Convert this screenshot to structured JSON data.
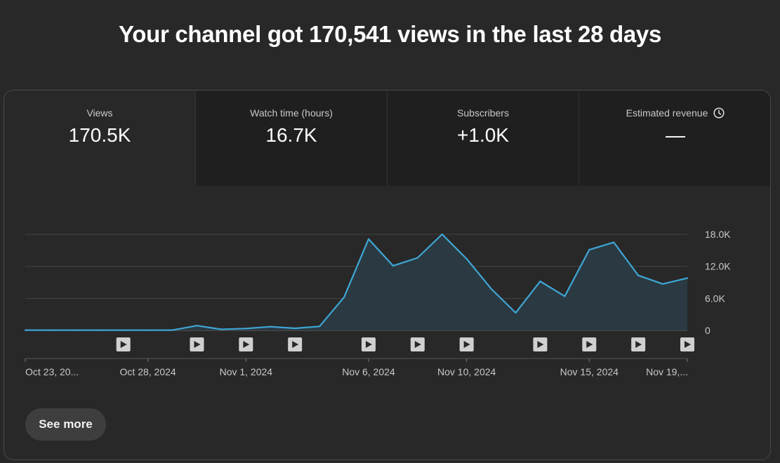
{
  "headline": "Your channel got 170,541 views in the last 28 days",
  "tabs": [
    {
      "label": "Views",
      "value": "170.5K",
      "active": true
    },
    {
      "label": "Watch time (hours)",
      "value": "16.7K",
      "active": false
    },
    {
      "label": "Subscribers",
      "value": "+1.0K",
      "active": false
    },
    {
      "label": "Estimated revenue",
      "value": "—",
      "active": false,
      "icon": "clock-icon"
    }
  ],
  "see_more_label": "See more",
  "colors": {
    "line": "#3ea6d6",
    "area": "#2b3a42",
    "grid": "#444444",
    "background": "#282828"
  },
  "chart_data": {
    "type": "area",
    "ylabel": "",
    "xlabel": "",
    "ylim": [
      0,
      18000
    ],
    "yticks": [
      {
        "value": 0,
        "label": "0"
      },
      {
        "value": 6000,
        "label": "6.0K"
      },
      {
        "value": 12000,
        "label": "12.0K"
      },
      {
        "value": 18000,
        "label": "18.0K"
      }
    ],
    "x": [
      "Oct 23, 2024",
      "Oct 24, 2024",
      "Oct 25, 2024",
      "Oct 26, 2024",
      "Oct 27, 2024",
      "Oct 28, 2024",
      "Oct 29, 2024",
      "Oct 30, 2024",
      "Oct 31, 2024",
      "Nov 1, 2024",
      "Nov 2, 2024",
      "Nov 3, 2024",
      "Nov 4, 2024",
      "Nov 5, 2024",
      "Nov 6, 2024",
      "Nov 7, 2024",
      "Nov 8, 2024",
      "Nov 9, 2024",
      "Nov 10, 2024",
      "Nov 11, 2024",
      "Nov 12, 2024",
      "Nov 13, 2024",
      "Nov 14, 2024",
      "Nov 15, 2024",
      "Nov 16, 2024",
      "Nov 17, 2024",
      "Nov 18, 2024",
      "Nov 19, 2024"
    ],
    "values": [
      50,
      50,
      50,
      50,
      50,
      50,
      50,
      900,
      200,
      350,
      700,
      400,
      750,
      6200,
      17100,
      12100,
      13600,
      18000,
      13400,
      7800,
      3300,
      9200,
      6400,
      15100,
      16500,
      10300,
      8700,
      9800
    ],
    "xtick_labels": [
      {
        "index": 0,
        "label": "Oct 23, 20..."
      },
      {
        "index": 5,
        "label": "Oct 28, 2024"
      },
      {
        "index": 9,
        "label": "Nov 1, 2024"
      },
      {
        "index": 14,
        "label": "Nov 6, 2024"
      },
      {
        "index": 18,
        "label": "Nov 10, 2024"
      },
      {
        "index": 23,
        "label": "Nov 15, 2024"
      },
      {
        "index": 27,
        "label": "Nov 19,..."
      }
    ],
    "video_markers": [
      4,
      7,
      9,
      11,
      14,
      16,
      18,
      21,
      23,
      25,
      27
    ],
    "grid": true
  }
}
